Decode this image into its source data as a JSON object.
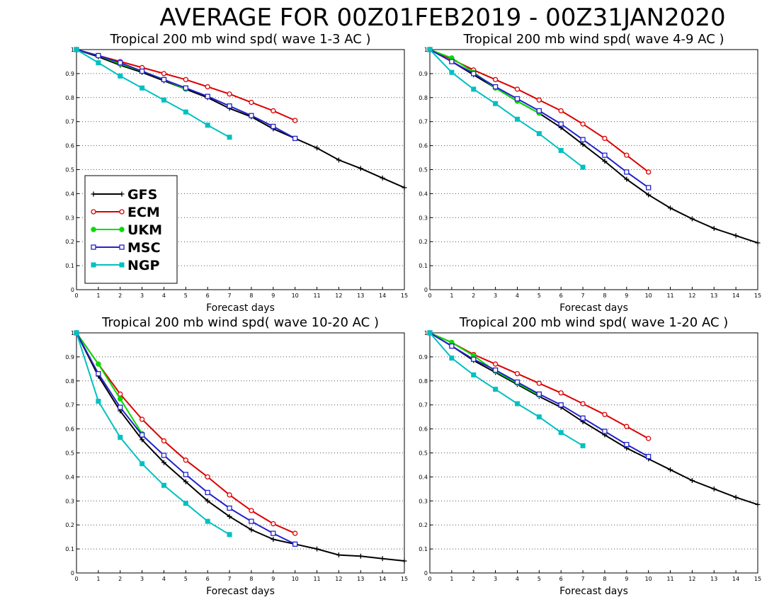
{
  "title": "AVERAGE FOR 00Z01FEB2019 - 00Z31JAN2020",
  "legend": [
    {
      "name": "GFS",
      "color": "#000000",
      "marker": "plus"
    },
    {
      "name": "ECM",
      "color": "#dd0000",
      "marker": "open-circle"
    },
    {
      "name": "UKM",
      "color": "#00dd00",
      "marker": "filled-circle"
    },
    {
      "name": "MSC",
      "color": "#2222cc",
      "marker": "open-square"
    },
    {
      "name": "NGP",
      "color": "#00c0c0",
      "marker": "filled-square"
    }
  ],
  "chart_data": [
    {
      "type": "line",
      "title": "Tropical 200 mb wind spd( wave 1-3 AC )",
      "xlabel": "Forecast days",
      "ylabel": "",
      "xlim": [
        0,
        15
      ],
      "ylim": [
        0,
        1
      ],
      "xticks": [
        "0",
        "1",
        "2",
        "3",
        "4",
        "5",
        "6",
        "7",
        "8",
        "9",
        "10",
        "11",
        "12",
        "13",
        "14",
        "15"
      ],
      "yticks": [
        "0",
        "0.1",
        "0.2",
        "0.3",
        "0.4",
        "0.5",
        "0.6",
        "0.7",
        "0.8",
        "0.9",
        "1"
      ],
      "grid": "horizontal-dotted",
      "legend_position": "lower-left",
      "series": [
        {
          "name": "GFS",
          "x": [
            0,
            1,
            2,
            3,
            4,
            5,
            6,
            7,
            8,
            9,
            10,
            11,
            12,
            13,
            14,
            15
          ],
          "values": [
            1,
            0.97,
            0.935,
            0.905,
            0.87,
            0.835,
            0.8,
            0.755,
            0.72,
            0.67,
            0.63,
            0.59,
            0.54,
            0.505,
            0.465,
            0.425
          ]
        },
        {
          "name": "ECM",
          "x": [
            0,
            1,
            2,
            3,
            4,
            5,
            6,
            7,
            8,
            9,
            10
          ],
          "values": [
            1,
            0.975,
            0.95,
            0.925,
            0.9,
            0.875,
            0.845,
            0.815,
            0.78,
            0.745,
            0.705
          ]
        },
        {
          "name": "UKM",
          "x": [
            0,
            1,
            2,
            3,
            4,
            5
          ],
          "values": [
            1,
            0.975,
            0.94,
            0.91,
            0.875,
            0.835
          ]
        },
        {
          "name": "MSC",
          "x": [
            0,
            1,
            2,
            3,
            4,
            5,
            6,
            7,
            8,
            9,
            10
          ],
          "values": [
            1,
            0.975,
            0.945,
            0.91,
            0.875,
            0.84,
            0.805,
            0.765,
            0.725,
            0.68,
            0.63
          ]
        },
        {
          "name": "NGP",
          "x": [
            0,
            1,
            2,
            3,
            4,
            5,
            6,
            7
          ],
          "values": [
            1,
            0.945,
            0.89,
            0.84,
            0.79,
            0.74,
            0.685,
            0.635
          ]
        }
      ]
    },
    {
      "type": "line",
      "title": "Tropical 200 mb wind spd( wave 4-9 AC )",
      "xlabel": "Forecast days",
      "ylabel": "",
      "xlim": [
        0,
        15
      ],
      "ylim": [
        0,
        1
      ],
      "xticks": [
        "0",
        "1",
        "2",
        "3",
        "4",
        "5",
        "6",
        "7",
        "8",
        "9",
        "10",
        "11",
        "12",
        "13",
        "14",
        "15"
      ],
      "yticks": [
        "0",
        "0.1",
        "0.2",
        "0.3",
        "0.4",
        "0.5",
        "0.6",
        "0.7",
        "0.8",
        "0.9",
        "1"
      ],
      "grid": "horizontal-dotted",
      "series": [
        {
          "name": "GFS",
          "x": [
            0,
            1,
            2,
            3,
            4,
            5,
            6,
            7,
            8,
            9,
            10,
            11,
            12,
            13,
            14,
            15
          ],
          "values": [
            1,
            0.95,
            0.895,
            0.84,
            0.785,
            0.735,
            0.675,
            0.605,
            0.535,
            0.46,
            0.395,
            0.34,
            0.295,
            0.255,
            0.225,
            0.195
          ]
        },
        {
          "name": "ECM",
          "x": [
            0,
            1,
            2,
            3,
            4,
            5,
            6,
            7,
            8,
            9,
            10
          ],
          "values": [
            1,
            0.96,
            0.915,
            0.875,
            0.835,
            0.79,
            0.745,
            0.69,
            0.63,
            0.56,
            0.49
          ]
        },
        {
          "name": "UKM",
          "x": [
            0,
            1,
            2,
            3,
            4,
            5
          ],
          "values": [
            1,
            0.965,
            0.905,
            0.84,
            0.785,
            0.735
          ]
        },
        {
          "name": "MSC",
          "x": [
            0,
            1,
            2,
            3,
            4,
            5,
            6,
            7,
            8,
            9,
            10
          ],
          "values": [
            1,
            0.95,
            0.9,
            0.845,
            0.795,
            0.745,
            0.69,
            0.625,
            0.56,
            0.49,
            0.425
          ]
        },
        {
          "name": "NGP",
          "x": [
            0,
            1,
            2,
            3,
            4,
            5,
            6,
            7
          ],
          "values": [
            1,
            0.905,
            0.835,
            0.775,
            0.71,
            0.65,
            0.58,
            0.51
          ]
        }
      ]
    },
    {
      "type": "line",
      "title": "Tropical 200 mb wind spd( wave 10-20 AC )",
      "xlabel": "Forecast days",
      "ylabel": "",
      "xlim": [
        0,
        15
      ],
      "ylim": [
        0,
        1
      ],
      "xticks": [
        "0",
        "1",
        "2",
        "3",
        "4",
        "5",
        "6",
        "7",
        "8",
        "9",
        "10",
        "11",
        "12",
        "13",
        "14",
        "15"
      ],
      "yticks": [
        "0",
        "0.1",
        "0.2",
        "0.3",
        "0.4",
        "0.5",
        "0.6",
        "0.7",
        "0.8",
        "0.9",
        "1"
      ],
      "grid": "horizontal-dotted",
      "series": [
        {
          "name": "GFS",
          "x": [
            0,
            1,
            2,
            3,
            4,
            5,
            6,
            7,
            8,
            9,
            10,
            11,
            12,
            13,
            14,
            15
          ],
          "values": [
            1,
            0.82,
            0.675,
            0.555,
            0.46,
            0.38,
            0.3,
            0.235,
            0.18,
            0.14,
            0.12,
            0.1,
            0.075,
            0.07,
            0.06,
            0.05
          ]
        },
        {
          "name": "ECM",
          "x": [
            0,
            1,
            2,
            3,
            4,
            5,
            6,
            7,
            8,
            9,
            10
          ],
          "values": [
            1,
            0.87,
            0.745,
            0.64,
            0.55,
            0.47,
            0.4,
            0.325,
            0.26,
            0.205,
            0.165
          ]
        },
        {
          "name": "UKM",
          "x": [
            0,
            1,
            2,
            3
          ],
          "values": [
            1,
            0.87,
            0.725,
            0.58
          ]
        },
        {
          "name": "MSC",
          "x": [
            0,
            1,
            2,
            3,
            4,
            5,
            6,
            7,
            8,
            9,
            10
          ],
          "values": [
            1,
            0.83,
            0.69,
            0.575,
            0.49,
            0.41,
            0.335,
            0.27,
            0.215,
            0.165,
            0.12
          ]
        },
        {
          "name": "NGP",
          "x": [
            0,
            1,
            2,
            3,
            4,
            5,
            6,
            7
          ],
          "values": [
            1,
            0.715,
            0.565,
            0.455,
            0.365,
            0.29,
            0.215,
            0.16
          ]
        }
      ]
    },
    {
      "type": "line",
      "title": "Tropical 200 mb wind spd( wave 1-20 AC )",
      "xlabel": "Forecast days",
      "ylabel": "",
      "xlim": [
        0,
        15
      ],
      "ylim": [
        0,
        1
      ],
      "xticks": [
        "0",
        "1",
        "2",
        "3",
        "4",
        "5",
        "6",
        "7",
        "8",
        "9",
        "10",
        "11",
        "12",
        "13",
        "14",
        "15"
      ],
      "yticks": [
        "0",
        "0.1",
        "0.2",
        "0.3",
        "0.4",
        "0.5",
        "0.6",
        "0.7",
        "0.8",
        "0.9",
        "1"
      ],
      "grid": "horizontal-dotted",
      "series": [
        {
          "name": "GFS",
          "x": [
            0,
            1,
            2,
            3,
            4,
            5,
            6,
            7,
            8,
            9,
            10,
            11,
            12,
            13,
            14,
            15
          ],
          "values": [
            1,
            0.945,
            0.885,
            0.835,
            0.785,
            0.735,
            0.69,
            0.63,
            0.575,
            0.52,
            0.475,
            0.43,
            0.385,
            0.35,
            0.315,
            0.285
          ]
        },
        {
          "name": "ECM",
          "x": [
            0,
            1,
            2,
            3,
            4,
            5,
            6,
            7,
            8,
            9,
            10
          ],
          "values": [
            1,
            0.96,
            0.91,
            0.87,
            0.83,
            0.79,
            0.75,
            0.705,
            0.66,
            0.61,
            0.56
          ]
        },
        {
          "name": "UKM",
          "x": [
            0,
            1,
            2,
            3,
            4,
            5
          ],
          "values": [
            1,
            0.96,
            0.905,
            0.84,
            0.79,
            0.74
          ]
        },
        {
          "name": "MSC",
          "x": [
            0,
            1,
            2,
            3,
            4,
            5,
            6,
            7,
            8,
            9,
            10
          ],
          "values": [
            1,
            0.945,
            0.89,
            0.845,
            0.795,
            0.745,
            0.7,
            0.645,
            0.59,
            0.535,
            0.485
          ]
        },
        {
          "name": "NGP",
          "x": [
            0,
            1,
            2,
            3,
            4,
            5,
            6,
            7
          ],
          "values": [
            1,
            0.895,
            0.825,
            0.765,
            0.705,
            0.65,
            0.585,
            0.53
          ]
        }
      ]
    }
  ]
}
